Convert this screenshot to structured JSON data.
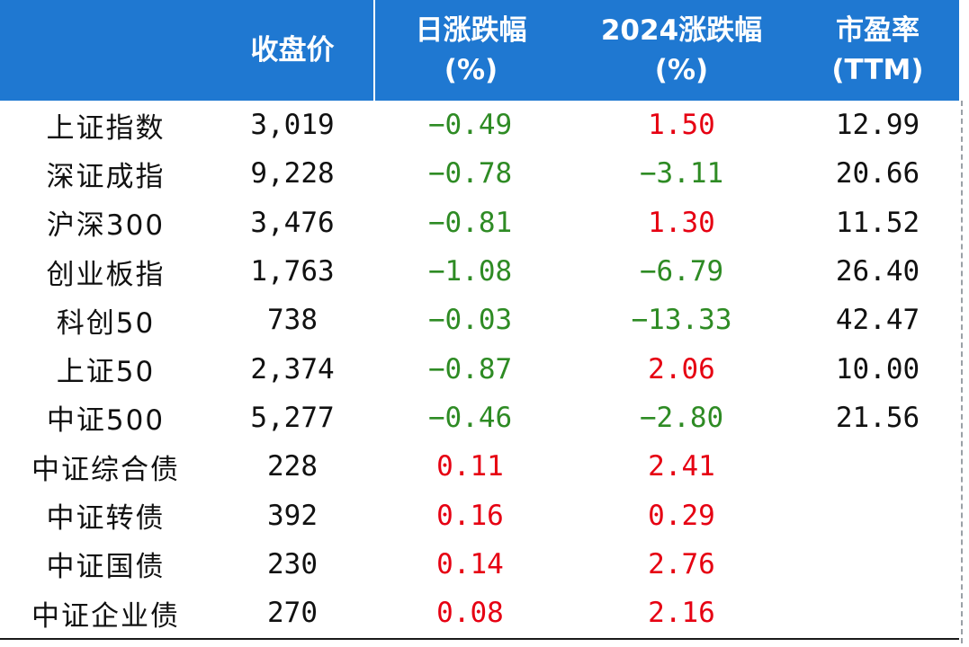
{
  "headers": [
    {
      "line1": "",
      "line2": ""
    },
    {
      "line1": "收盘价",
      "line2": ""
    },
    {
      "line1": "日涨跌幅",
      "line2": "(%)"
    },
    {
      "line1": "2024涨跌幅",
      "line2": "(%)"
    },
    {
      "line1": "市盈率",
      "line2": "(TTM)"
    }
  ],
  "colors": {
    "header_bg": "#1f78d1",
    "negative": "#2e8b24",
    "positive": "#e60012",
    "text": "#111111"
  },
  "rows": [
    {
      "name": "上证指数",
      "close": "3,019",
      "daily": "−0.49",
      "daily_sign": "neg",
      "ytd": "1.50",
      "ytd_sign": "pos",
      "pe": "12.99"
    },
    {
      "name": "深证成指",
      "close": "9,228",
      "daily": "−0.78",
      "daily_sign": "neg",
      "ytd": "−3.11",
      "ytd_sign": "neg",
      "pe": "20.66"
    },
    {
      "name": "沪深300",
      "close": "3,476",
      "daily": "−0.81",
      "daily_sign": "neg",
      "ytd": "1.30",
      "ytd_sign": "pos",
      "pe": "11.52"
    },
    {
      "name": "创业板指",
      "close": "1,763",
      "daily": "−1.08",
      "daily_sign": "neg",
      "ytd": "−6.79",
      "ytd_sign": "neg",
      "pe": "26.40"
    },
    {
      "name": "科创50",
      "close": "738",
      "daily": "−0.03",
      "daily_sign": "neg",
      "ytd": "−13.33",
      "ytd_sign": "neg",
      "pe": "42.47"
    },
    {
      "name": "上证50",
      "close": "2,374",
      "daily": "−0.87",
      "daily_sign": "neg",
      "ytd": "2.06",
      "ytd_sign": "pos",
      "pe": "10.00"
    },
    {
      "name": "中证500",
      "close": "5,277",
      "daily": "−0.46",
      "daily_sign": "neg",
      "ytd": "−2.80",
      "ytd_sign": "neg",
      "pe": "21.56"
    },
    {
      "name": "中证综合债",
      "close": "228",
      "daily": "0.11",
      "daily_sign": "pos",
      "ytd": "2.41",
      "ytd_sign": "pos",
      "pe": ""
    },
    {
      "name": "中证转债",
      "close": "392",
      "daily": "0.16",
      "daily_sign": "pos",
      "ytd": "0.29",
      "ytd_sign": "pos",
      "pe": ""
    },
    {
      "name": "中证国债",
      "close": "230",
      "daily": "0.14",
      "daily_sign": "pos",
      "ytd": "2.76",
      "ytd_sign": "pos",
      "pe": ""
    },
    {
      "name": "中证企业债",
      "close": "270",
      "daily": "0.08",
      "daily_sign": "pos",
      "ytd": "2.16",
      "ytd_sign": "pos",
      "pe": ""
    }
  ]
}
